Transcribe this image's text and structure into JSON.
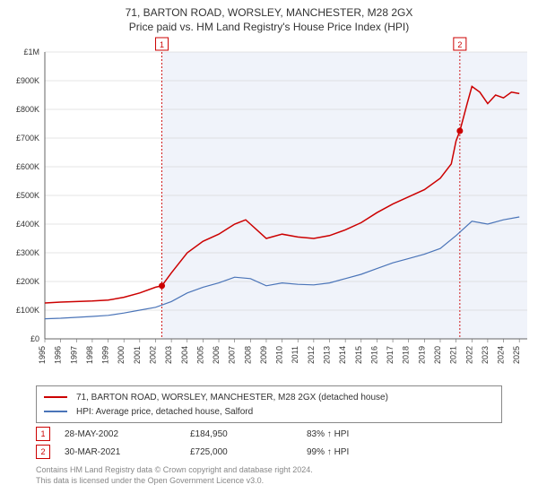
{
  "title_line1": "71, BARTON ROAD, WORSLEY, MANCHESTER, M28 2GX",
  "title_line2": "Price paid vs. HM Land Registry's House Price Index (HPI)",
  "chart": {
    "type": "line",
    "background_color": "#ffffff",
    "plot_bg": "#f0f3fa",
    "plot_bg_start_year": 2002.4,
    "plot_bg_end_year": 2025.5,
    "grid_color": "#cccccc",
    "axis_color": "#666666",
    "tick_fontsize": 9,
    "tick_color": "#333333",
    "x_years": [
      1995,
      1996,
      1997,
      1998,
      1999,
      2000,
      2001,
      2002,
      2003,
      2004,
      2005,
      2006,
      2007,
      2008,
      2009,
      2010,
      2011,
      2012,
      2013,
      2014,
      2015,
      2016,
      2017,
      2018,
      2019,
      2020,
      2021,
      2022,
      2023,
      2024,
      2025
    ],
    "y_ticks": [
      0,
      100000,
      200000,
      300000,
      400000,
      500000,
      600000,
      700000,
      800000,
      900000,
      1000000
    ],
    "y_tick_labels": [
      "£0",
      "£100K",
      "£200K",
      "£300K",
      "£400K",
      "£500K",
      "£600K",
      "£700K",
      "£800K",
      "£900K",
      "£1M"
    ],
    "ylim": [
      0,
      1000000
    ],
    "xlim": [
      1995,
      2025.5
    ],
    "series": [
      {
        "name": "71, BARTON ROAD, WORSLEY, MANCHESTER, M28 2GX (detached house)",
        "color": "#cc0000",
        "line_width": 1.5,
        "points": [
          [
            1995,
            125000
          ],
          [
            1996,
            128000
          ],
          [
            1997,
            130000
          ],
          [
            1998,
            132000
          ],
          [
            1999,
            135000
          ],
          [
            2000,
            145000
          ],
          [
            2001,
            160000
          ],
          [
            2002,
            180000
          ],
          [
            2002.4,
            184950
          ],
          [
            2003,
            230000
          ],
          [
            2004,
            300000
          ],
          [
            2005,
            340000
          ],
          [
            2006,
            365000
          ],
          [
            2007,
            400000
          ],
          [
            2007.7,
            415000
          ],
          [
            2008,
            400000
          ],
          [
            2009,
            350000
          ],
          [
            2010,
            365000
          ],
          [
            2011,
            355000
          ],
          [
            2012,
            350000
          ],
          [
            2013,
            360000
          ],
          [
            2014,
            380000
          ],
          [
            2015,
            405000
          ],
          [
            2016,
            440000
          ],
          [
            2017,
            470000
          ],
          [
            2018,
            495000
          ],
          [
            2019,
            520000
          ],
          [
            2020,
            560000
          ],
          [
            2020.7,
            610000
          ],
          [
            2021,
            690000
          ],
          [
            2021.24,
            725000
          ],
          [
            2021.7,
            820000
          ],
          [
            2022,
            880000
          ],
          [
            2022.5,
            860000
          ],
          [
            2023,
            820000
          ],
          [
            2023.5,
            850000
          ],
          [
            2024,
            840000
          ],
          [
            2024.5,
            860000
          ],
          [
            2025,
            855000
          ]
        ]
      },
      {
        "name": "HPI: Average price, detached house, Salford",
        "color": "#4a74b8",
        "line_width": 1.2,
        "points": [
          [
            1995,
            70000
          ],
          [
            1996,
            72000
          ],
          [
            1997,
            75000
          ],
          [
            1998,
            78000
          ],
          [
            1999,
            82000
          ],
          [
            2000,
            90000
          ],
          [
            2001,
            100000
          ],
          [
            2002,
            110000
          ],
          [
            2003,
            130000
          ],
          [
            2004,
            160000
          ],
          [
            2005,
            180000
          ],
          [
            2006,
            195000
          ],
          [
            2007,
            215000
          ],
          [
            2008,
            210000
          ],
          [
            2009,
            185000
          ],
          [
            2010,
            195000
          ],
          [
            2011,
            190000
          ],
          [
            2012,
            188000
          ],
          [
            2013,
            195000
          ],
          [
            2014,
            210000
          ],
          [
            2015,
            225000
          ],
          [
            2016,
            245000
          ],
          [
            2017,
            265000
          ],
          [
            2018,
            280000
          ],
          [
            2019,
            295000
          ],
          [
            2020,
            315000
          ],
          [
            2021,
            360000
          ],
          [
            2022,
            410000
          ],
          [
            2023,
            400000
          ],
          [
            2024,
            415000
          ],
          [
            2025,
            425000
          ]
        ]
      }
    ],
    "markers": [
      {
        "label": "1",
        "color": "#cc0000",
        "x": 2002.4,
        "y": 184950,
        "line_dash": "2,2"
      },
      {
        "label": "2",
        "color": "#cc0000",
        "x": 2021.24,
        "y": 725000,
        "line_dash": "2,2"
      }
    ]
  },
  "legend": {
    "items": [
      {
        "color": "#cc0000",
        "label": "71, BARTON ROAD, WORSLEY, MANCHESTER, M28 2GX (detached house)"
      },
      {
        "color": "#4a74b8",
        "label": "HPI: Average price, detached house, Salford"
      }
    ]
  },
  "transactions": [
    {
      "n": "1",
      "color": "#cc0000",
      "date": "28-MAY-2002",
      "price": "£184,950",
      "pct": "83% ↑ HPI"
    },
    {
      "n": "2",
      "color": "#cc0000",
      "date": "30-MAR-2021",
      "price": "£725,000",
      "pct": "99% ↑ HPI"
    }
  ],
  "footer_line1": "Contains HM Land Registry data © Crown copyright and database right 2024.",
  "footer_line2": "This data is licensed under the Open Government Licence v3.0."
}
